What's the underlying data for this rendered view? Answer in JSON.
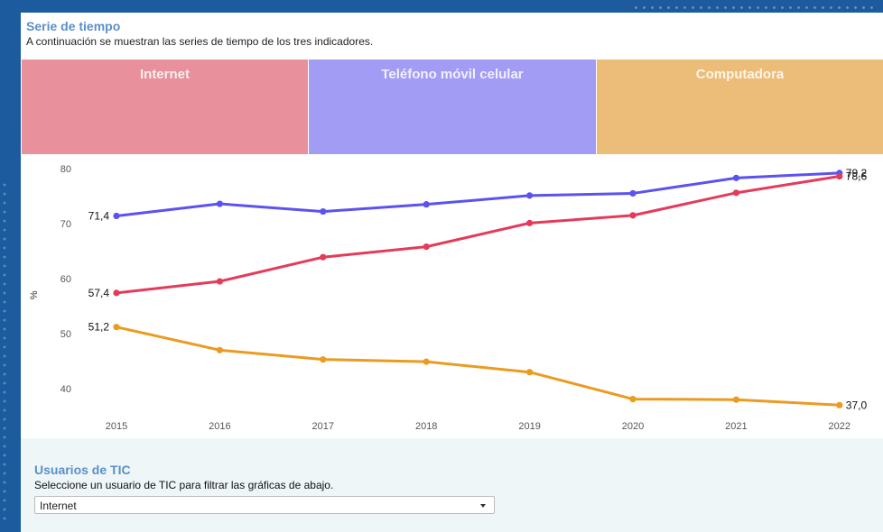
{
  "header": {
    "title": "Serie de tiempo",
    "description": "A continuación se muestran las series de tiempo de los tres indicadores."
  },
  "tabs": [
    {
      "label": "Internet",
      "color": "#e8909c"
    },
    {
      "label": "Teléfono móvil celular",
      "color": "#a39cf5"
    },
    {
      "label": "Computadora",
      "color": "#ecbd79"
    }
  ],
  "chart_data": {
    "type": "line",
    "ylabel": "%",
    "ylim": [
      35,
      80
    ],
    "yticks": [
      "40",
      "50",
      "60",
      "70",
      "80"
    ],
    "categories": [
      "2015",
      "2016",
      "2017",
      "2018",
      "2019",
      "2020",
      "2021",
      "2022"
    ],
    "grid": false,
    "series": [
      {
        "name": "Teléfono móvil celular",
        "color": "#5b52f0",
        "values": [
          71.4,
          73.6,
          72.2,
          73.5,
          75.1,
          75.5,
          78.3,
          79.2
        ],
        "labels": {
          "0": "71,4",
          "7": "79,2"
        }
      },
      {
        "name": "Internet",
        "color": "#e43b5a",
        "values": [
          57.4,
          59.5,
          63.9,
          65.8,
          70.1,
          71.5,
          75.6,
          78.6
        ],
        "labels": {
          "0": "57,4",
          "7": "78,6"
        }
      },
      {
        "name": "Computadora",
        "color": "#eb9b20",
        "values": [
          51.2,
          47.0,
          45.3,
          44.9,
          43.0,
          38.1,
          38.0,
          37.0
        ],
        "labels": {
          "0": "51,2",
          "7": "37,0"
        }
      }
    ]
  },
  "filter": {
    "title": "Usuarios de TIC",
    "description": "Seleccione un usuario de TIC para filtrar las gráficas de abajo.",
    "selected": "Internet"
  }
}
